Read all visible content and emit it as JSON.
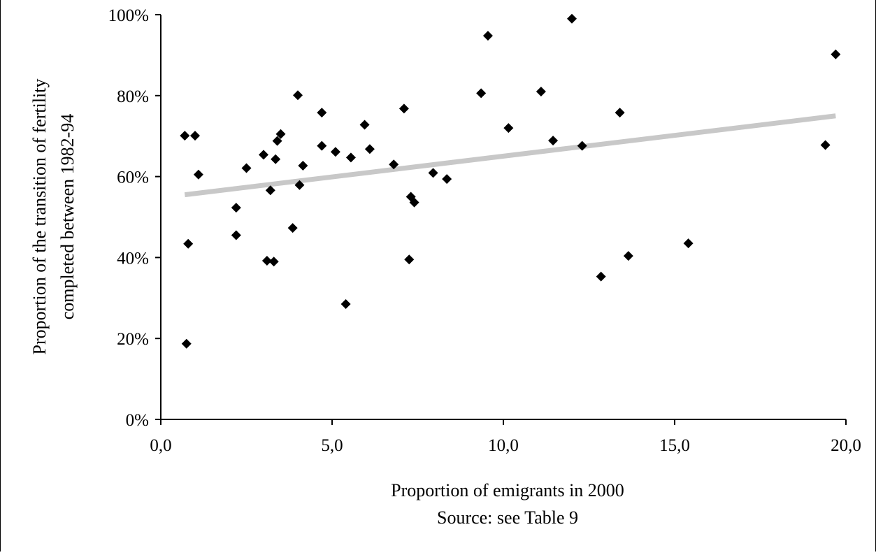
{
  "chart_data": {
    "type": "scatter",
    "title": "",
    "xlabel": "Proportion of emigrants in 2000",
    "source": "Source: see Table 9",
    "ylabel_lines": [
      "Proportion of the transition of fertility",
      "completed between 1982-94"
    ],
    "xlim": [
      0,
      20
    ],
    "ylim": [
      0,
      100
    ],
    "x_ticks": [
      {
        "value": 0,
        "label": "0,0"
      },
      {
        "value": 5,
        "label": "5,0"
      },
      {
        "value": 10,
        "label": "10,0"
      },
      {
        "value": 15,
        "label": "15,0"
      },
      {
        "value": 20,
        "label": "20,0"
      }
    ],
    "y_ticks": [
      {
        "value": 0,
        "label": "0%"
      },
      {
        "value": 20,
        "label": "20%"
      },
      {
        "value": 40,
        "label": "40%"
      },
      {
        "value": 60,
        "label": "60%"
      },
      {
        "value": 80,
        "label": "80%"
      },
      {
        "value": 100,
        "label": "100%"
      }
    ],
    "grid": false,
    "legend": "none",
    "marker": "diamond",
    "marker_color": "#000000",
    "trendline": {
      "x": [
        0.7,
        19.7
      ],
      "y": [
        55.5,
        75.0
      ],
      "color": "#c8c8c8"
    },
    "points": [
      {
        "x": 0.7,
        "y": 70.1
      },
      {
        "x": 1.0,
        "y": 70.1
      },
      {
        "x": 1.1,
        "y": 60.5
      },
      {
        "x": 0.8,
        "y": 43.4
      },
      {
        "x": 0.75,
        "y": 18.7
      },
      {
        "x": 2.2,
        "y": 52.3
      },
      {
        "x": 2.2,
        "y": 45.5
      },
      {
        "x": 2.5,
        "y": 62.1
      },
      {
        "x": 3.0,
        "y": 65.4
      },
      {
        "x": 3.1,
        "y": 39.2
      },
      {
        "x": 3.2,
        "y": 56.6
      },
      {
        "x": 3.3,
        "y": 39.0
      },
      {
        "x": 3.35,
        "y": 64.3
      },
      {
        "x": 3.4,
        "y": 68.8
      },
      {
        "x": 3.5,
        "y": 70.5
      },
      {
        "x": 3.85,
        "y": 47.3
      },
      {
        "x": 4.0,
        "y": 80.1
      },
      {
        "x": 4.05,
        "y": 57.9
      },
      {
        "x": 4.15,
        "y": 62.7
      },
      {
        "x": 4.7,
        "y": 75.8
      },
      {
        "x": 4.7,
        "y": 67.6
      },
      {
        "x": 5.1,
        "y": 66.1
      },
      {
        "x": 5.4,
        "y": 28.5
      },
      {
        "x": 5.55,
        "y": 64.7
      },
      {
        "x": 5.95,
        "y": 72.8
      },
      {
        "x": 6.1,
        "y": 66.8
      },
      {
        "x": 6.8,
        "y": 63.0
      },
      {
        "x": 7.1,
        "y": 76.8
      },
      {
        "x": 7.25,
        "y": 39.5
      },
      {
        "x": 7.3,
        "y": 55.0
      },
      {
        "x": 7.4,
        "y": 53.6
      },
      {
        "x": 7.95,
        "y": 60.9
      },
      {
        "x": 8.35,
        "y": 59.4
      },
      {
        "x": 9.35,
        "y": 80.6
      },
      {
        "x": 9.55,
        "y": 94.8
      },
      {
        "x": 10.15,
        "y": 72.0
      },
      {
        "x": 11.1,
        "y": 81.0
      },
      {
        "x": 11.45,
        "y": 68.9
      },
      {
        "x": 12.0,
        "y": 99.0
      },
      {
        "x": 12.3,
        "y": 67.6
      },
      {
        "x": 12.85,
        "y": 35.3
      },
      {
        "x": 13.4,
        "y": 75.8
      },
      {
        "x": 13.65,
        "y": 40.4
      },
      {
        "x": 15.4,
        "y": 43.5
      },
      {
        "x": 19.4,
        "y": 67.8
      },
      {
        "x": 19.7,
        "y": 90.2
      }
    ]
  }
}
